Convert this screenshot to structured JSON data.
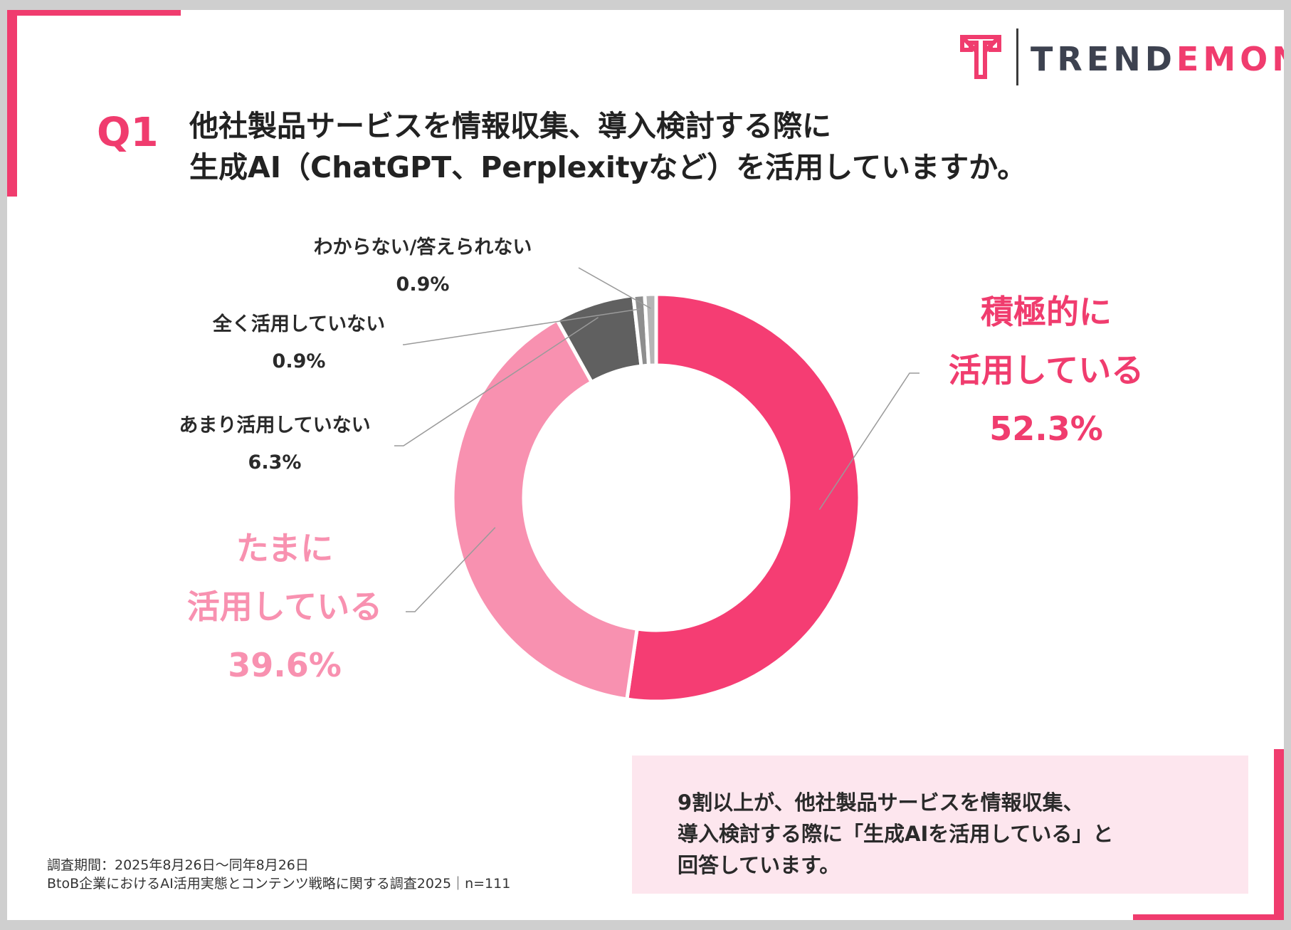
{
  "logo": {
    "text_dark": "TREND",
    "text_accent": "EMON"
  },
  "question": {
    "label": "Q1",
    "title_line1": "他社製品サービスを情報収集、導入検討する際に",
    "title_line2": "生成AI（ChatGPT、Perplexityなど）を活用していますか。"
  },
  "colors": {
    "accent": "#f03c6e",
    "strong": "#f53d73",
    "light": "#f891b0",
    "dark": "#606060",
    "gray1": "#8e8e8e",
    "gray2": "#b5b5b5"
  },
  "chart_data": {
    "type": "pie",
    "style": "donut",
    "title": "他社製品サービスを情報収集、導入検討する際に生成AI（ChatGPT、Perplexityなど）を活用していますか。",
    "slices": [
      {
        "label_lines": [
          "積極的に",
          "活用している"
        ],
        "value": 52.3,
        "value_label": "52.3%"
      },
      {
        "label_lines": [
          "たまに",
          "活用している"
        ],
        "value": 39.6,
        "value_label": "39.6%"
      },
      {
        "label_lines": [
          "あまり活用していない"
        ],
        "value": 6.3,
        "value_label": "6.3%"
      },
      {
        "label_lines": [
          "全く活用していない"
        ],
        "value": 0.9,
        "value_label": "0.9%"
      },
      {
        "label_lines": [
          "わからない/答えられない"
        ],
        "value": 0.9,
        "value_label": "0.9%"
      }
    ]
  },
  "summary": {
    "line1": "9割以上が、他社製品サービスを情報収集、",
    "line2": "導入検討する際に「生成AIを活用している」と",
    "line3": "回答しています。"
  },
  "footnote": {
    "line1": "調査期間：2025年8月26日〜同年8月26日",
    "line2": "BtoB企業におけるAI活用実態とコンテンツ戦略に関する調査2025｜n=111"
  }
}
